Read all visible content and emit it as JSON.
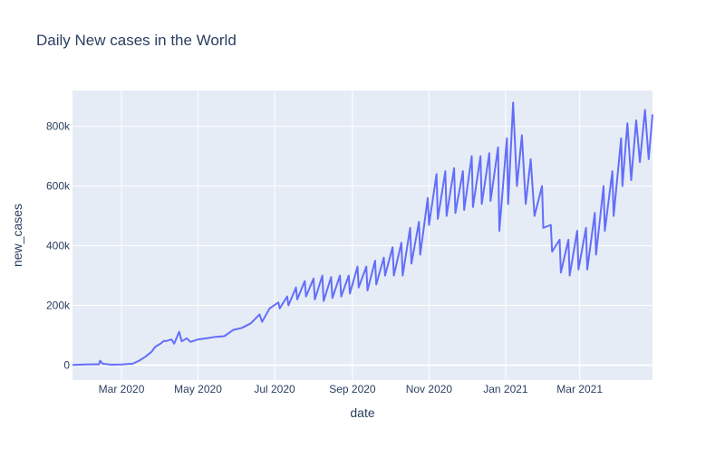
{
  "chart_data": {
    "type": "line",
    "title": "Daily New cases in the World",
    "xlabel": "date",
    "ylabel": "new_cases",
    "x_ticks": [
      "Mar 2020",
      "May 2020",
      "Jul 2020",
      "Sep 2020",
      "Nov 2020",
      "Jan 2021",
      "Mar 2021"
    ],
    "y_ticks": [
      "0",
      "200k",
      "400k",
      "600k",
      "800k"
    ],
    "xlim": [
      "2020-01-22",
      "2021-04-28"
    ],
    "ylim": [
      -50000,
      920000
    ],
    "grid": true,
    "line_color": "#636efa",
    "series": [
      {
        "x": [
          "2020-01-22",
          "2020-02-01",
          "2020-02-10",
          "2020-02-12",
          "2020-02-13",
          "2020-02-15",
          "2020-02-22",
          "2020-03-01",
          "2020-03-10",
          "2020-03-15",
          "2020-03-20",
          "2020-03-25",
          "2020-03-28",
          "2020-04-01",
          "2020-04-04",
          "2020-04-05",
          "2020-04-10",
          "2020-04-12",
          "2020-04-16",
          "2020-04-18",
          "2020-04-22",
          "2020-04-25",
          "2020-05-01",
          "2020-05-08",
          "2020-05-15",
          "2020-05-22",
          "2020-05-29",
          "2020-06-05",
          "2020-06-12",
          "2020-06-19",
          "2020-06-21",
          "2020-06-27",
          "2020-07-04",
          "2020-07-05",
          "2020-07-11",
          "2020-07-12",
          "2020-07-18",
          "2020-07-19",
          "2020-07-25",
          "2020-07-26",
          "2020-08-01",
          "2020-08-02",
          "2020-08-08",
          "2020-08-09",
          "2020-08-15",
          "2020-08-16",
          "2020-08-22",
          "2020-08-23",
          "2020-08-29",
          "2020-08-30",
          "2020-09-05",
          "2020-09-06",
          "2020-09-12",
          "2020-09-13",
          "2020-09-19",
          "2020-09-20",
          "2020-09-26",
          "2020-09-27",
          "2020-10-03",
          "2020-10-04",
          "2020-10-10",
          "2020-10-11",
          "2020-10-17",
          "2020-10-18",
          "2020-10-24",
          "2020-10-25",
          "2020-10-31",
          "2020-11-01",
          "2020-11-07",
          "2020-11-08",
          "2020-11-14",
          "2020-11-15",
          "2020-11-21",
          "2020-11-22",
          "2020-11-28",
          "2020-11-29",
          "2020-12-05",
          "2020-12-06",
          "2020-12-12",
          "2020-12-13",
          "2020-12-19",
          "2020-12-20",
          "2020-12-26",
          "2020-12-27",
          "2021-01-02",
          "2021-01-03",
          "2021-01-07",
          "2021-01-10",
          "2021-01-14",
          "2021-01-17",
          "2021-01-21",
          "2021-01-24",
          "2021-01-30",
          "2021-01-31",
          "2021-02-06",
          "2021-02-07",
          "2021-02-13",
          "2021-02-14",
          "2021-02-20",
          "2021-02-21",
          "2021-02-27",
          "2021-02-28",
          "2021-03-06",
          "2021-03-07",
          "2021-03-13",
          "2021-03-14",
          "2021-03-20",
          "2021-03-21",
          "2021-03-27",
          "2021-03-28",
          "2021-04-03",
          "2021-04-04",
          "2021-04-08",
          "2021-04-11",
          "2021-04-15",
          "2021-04-18",
          "2021-04-22",
          "2021-04-25",
          "2021-04-28"
        ],
        "y": [
          600,
          2000,
          3000,
          2000,
          15000,
          5000,
          1500,
          2500,
          5000,
          15000,
          28000,
          45000,
          62000,
          72000,
          82000,
          80000,
          86000,
          72000,
          112000,
          80000,
          90000,
          78000,
          86000,
          90000,
          95000,
          97000,
          118000,
          125000,
          140000,
          170000,
          145000,
          190000,
          210000,
          190000,
          230000,
          200000,
          260000,
          220000,
          282000,
          230000,
          290000,
          220000,
          300000,
          215000,
          295000,
          225000,
          300000,
          230000,
          300000,
          240000,
          330000,
          260000,
          330000,
          250000,
          350000,
          270000,
          360000,
          300000,
          395000,
          300000,
          410000,
          300000,
          460000,
          340000,
          480000,
          370000,
          560000,
          470000,
          640000,
          490000,
          650000,
          500000,
          660000,
          510000,
          650000,
          520000,
          700000,
          530000,
          700000,
          540000,
          710000,
          550000,
          730000,
          450000,
          760000,
          540000,
          880000,
          600000,
          770000,
          540000,
          690000,
          500000,
          600000,
          460000,
          470000,
          380000,
          420000,
          310000,
          420000,
          300000,
          450000,
          320000,
          460000,
          320000,
          510000,
          370000,
          600000,
          450000,
          650000,
          500000,
          760000,
          600000,
          810000,
          620000,
          820000,
          680000,
          855000,
          690000,
          840000
        ]
      }
    ]
  }
}
